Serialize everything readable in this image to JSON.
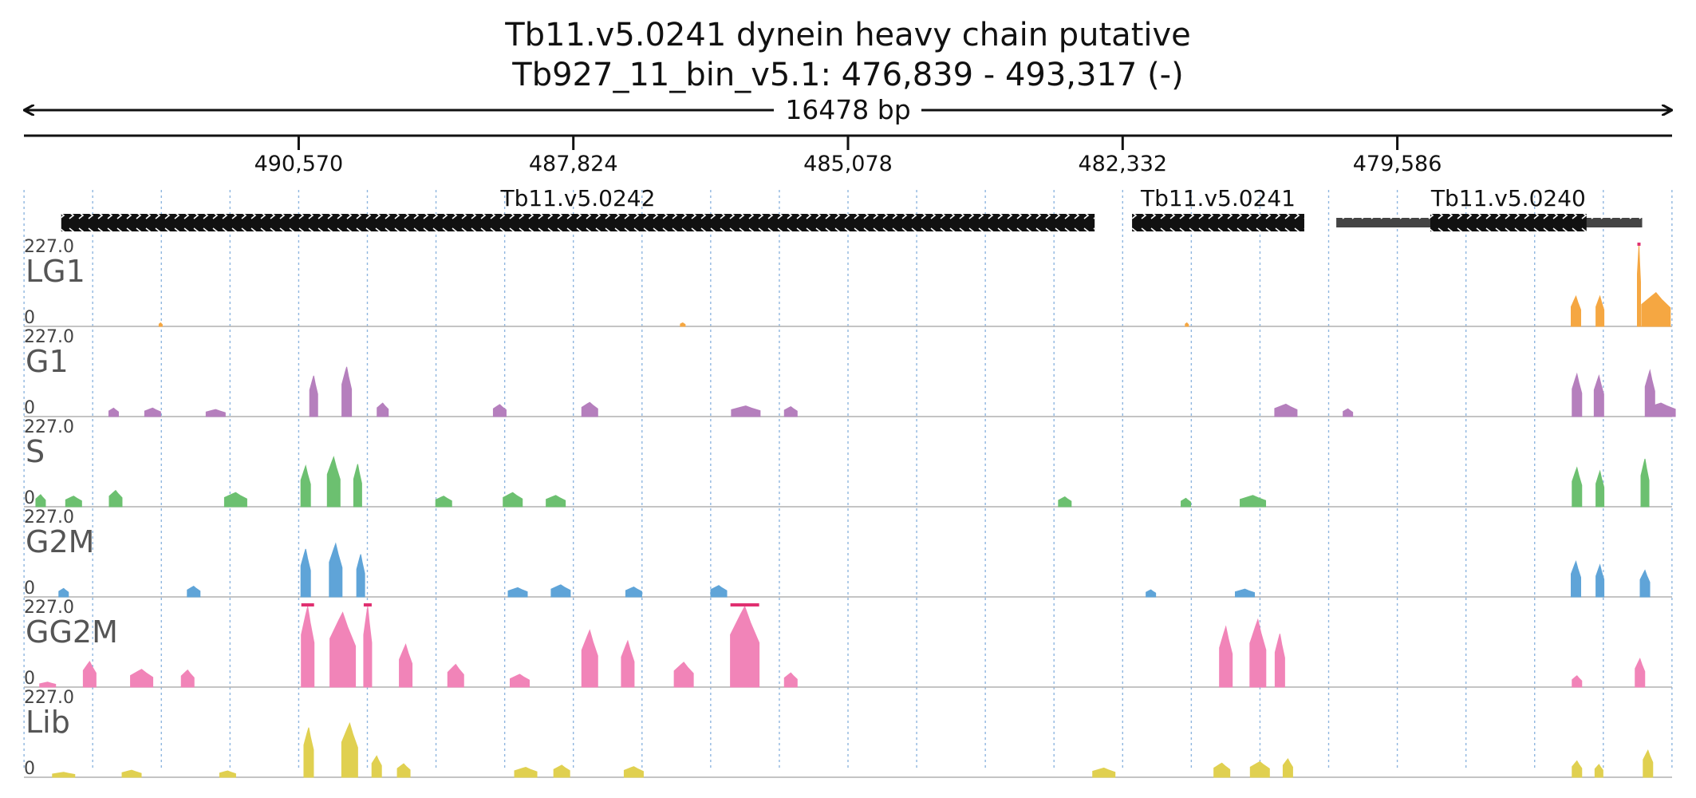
{
  "header": {
    "title": "Tb11.v5.0241  dynein heavy chain  putative",
    "locus": "Tb927_11_bin_v5.1: 476,839 - 493,317 (-)",
    "span_label": "16478 bp"
  },
  "chart_data": {
    "type": "area",
    "region": {
      "start": 476839,
      "end": 493317,
      "strand": "-"
    },
    "ticks": [
      {
        "pos": 490570,
        "label": "490,570"
      },
      {
        "pos": 487824,
        "label": "487,824"
      },
      {
        "pos": 485078,
        "label": "485,078"
      },
      {
        "pos": 482332,
        "label": "482,332"
      },
      {
        "pos": 479586,
        "label": "479,586"
      }
    ],
    "genes": [
      {
        "name": "Tb11.v5.0242",
        "start": 482612,
        "end": 492944,
        "utr": []
      },
      {
        "name": "Tb11.v5.0241",
        "start": 480516,
        "end": 482238,
        "utr": []
      },
      {
        "name": "Tb11.v5.0240",
        "start": 477694,
        "end": 479256,
        "utr": [
          [
            477138,
            480196
          ]
        ]
      }
    ],
    "y_max_label": "227.0",
    "y_min_label": "0",
    "ylim": [
      0,
      227
    ],
    "tracks": [
      {
        "name": "LG1",
        "color": "#f5a742",
        "peaks": [
          [
            491950,
            10,
            2
          ],
          [
            486730,
            10,
            3
          ],
          [
            481690,
            10,
            2
          ],
          [
            477800,
            85,
            6
          ],
          [
            477560,
            85,
            5
          ],
          [
            477170,
            227,
            2
          ],
          [
            477000,
            95,
            18
          ]
        ]
      },
      {
        "name": "G1",
        "color": "#b57fbd",
        "peaks": [
          [
            492420,
            24,
            6
          ],
          [
            492030,
            24,
            10
          ],
          [
            491400,
            20,
            12
          ],
          [
            490420,
            115,
            5
          ],
          [
            490090,
            140,
            6
          ],
          [
            489730,
            38,
            7
          ],
          [
            488560,
            34,
            8
          ],
          [
            487660,
            40,
            10
          ],
          [
            486100,
            30,
            18
          ],
          [
            485650,
            28,
            8
          ],
          [
            480700,
            35,
            14
          ],
          [
            480080,
            22,
            6
          ],
          [
            477790,
            120,
            6
          ],
          [
            477570,
            115,
            6
          ],
          [
            477060,
            130,
            6
          ],
          [
            476950,
            38,
            18
          ]
        ]
      },
      {
        "name": "S",
        "color": "#6cc070",
        "peaks": [
          [
            493150,
            34,
            6
          ],
          [
            492820,
            30,
            10
          ],
          [
            492400,
            46,
            8
          ],
          [
            491200,
            40,
            14
          ],
          [
            490500,
            115,
            6
          ],
          [
            490220,
            140,
            8
          ],
          [
            489980,
            120,
            5
          ],
          [
            489120,
            30,
            10
          ],
          [
            488430,
            40,
            12
          ],
          [
            488000,
            32,
            12
          ],
          [
            482910,
            28,
            8
          ],
          [
            481700,
            24,
            6
          ],
          [
            481030,
            32,
            16
          ],
          [
            477790,
            110,
            6
          ],
          [
            477560,
            100,
            5
          ],
          [
            477110,
            135,
            5
          ]
        ]
      },
      {
        "name": "G2M",
        "color": "#5fa4d8",
        "peaks": [
          [
            492920,
            24,
            6
          ],
          [
            491620,
            30,
            8
          ],
          [
            490500,
            135,
            6
          ],
          [
            490200,
            150,
            8
          ],
          [
            489950,
            120,
            5
          ],
          [
            488380,
            26,
            12
          ],
          [
            487950,
            34,
            12
          ],
          [
            487220,
            28,
            10
          ],
          [
            486370,
            32,
            10
          ],
          [
            482050,
            20,
            6
          ],
          [
            481110,
            22,
            12
          ],
          [
            477800,
            100,
            6
          ],
          [
            477560,
            90,
            5
          ],
          [
            477110,
            75,
            6
          ]
        ]
      },
      {
        "name": "GG2M",
        "color": "#f184b8",
        "peaks": [
          [
            493080,
            14,
            10
          ],
          [
            492660,
            72,
            8
          ],
          [
            492140,
            50,
            14
          ],
          [
            491680,
            48,
            8
          ],
          [
            490480,
            227,
            8
          ],
          [
            490130,
            210,
            16
          ],
          [
            489880,
            227,
            5
          ],
          [
            489500,
            120,
            8
          ],
          [
            489000,
            64,
            10
          ],
          [
            488360,
            36,
            12
          ],
          [
            487660,
            160,
            10
          ],
          [
            487280,
            130,
            8
          ],
          [
            486720,
            70,
            12
          ],
          [
            486110,
            227,
            18
          ],
          [
            485650,
            40,
            8
          ],
          [
            481300,
            170,
            8
          ],
          [
            480980,
            190,
            10
          ],
          [
            480760,
            150,
            6
          ],
          [
            477790,
            32,
            6
          ],
          [
            477160,
            80,
            6
          ]
        ]
      },
      {
        "name": "Lib",
        "color": "#e0d050",
        "peaks": [
          [
            492920,
            14,
            14
          ],
          [
            492240,
            20,
            12
          ],
          [
            491280,
            18,
            10
          ],
          [
            490470,
            140,
            6
          ],
          [
            490060,
            152,
            10
          ],
          [
            489790,
            60,
            6
          ],
          [
            489520,
            38,
            8
          ],
          [
            488300,
            28,
            14
          ],
          [
            487940,
            34,
            10
          ],
          [
            487220,
            30,
            12
          ],
          [
            482520,
            26,
            14
          ],
          [
            481340,
            40,
            10
          ],
          [
            480960,
            44,
            12
          ],
          [
            480680,
            52,
            6
          ],
          [
            477790,
            46,
            6
          ],
          [
            477570,
            36,
            5
          ],
          [
            477080,
            76,
            6
          ]
        ]
      }
    ]
  }
}
